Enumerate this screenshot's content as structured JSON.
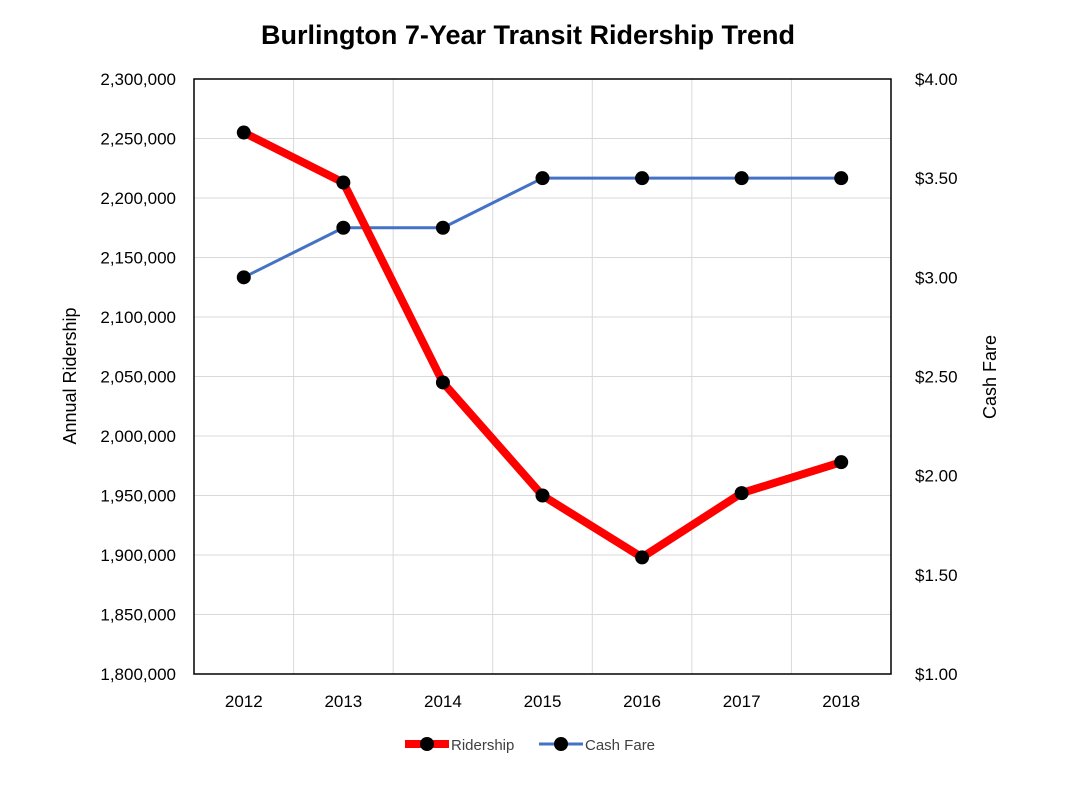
{
  "chart_data": {
    "type": "line",
    "title": "Burlington 7-Year Transit Ridership Trend",
    "categories": [
      "2012",
      "2013",
      "2014",
      "2015",
      "2016",
      "2017",
      "2018"
    ],
    "series": [
      {
        "name": "Ridership",
        "axis": "left",
        "color": "#ff0000",
        "values": [
          2255000,
          2213000,
          2045000,
          1950000,
          1898000,
          1952000,
          1978000
        ]
      },
      {
        "name": "Cash Fare",
        "axis": "right",
        "color": "#4472c4",
        "values": [
          3.0,
          3.25,
          3.25,
          3.5,
          3.5,
          3.5,
          3.5
        ]
      }
    ],
    "left_axis": {
      "label": "Annual Ridership",
      "min": 1800000,
      "max": 2300000,
      "step": 50000,
      "tick_labels": [
        "1,800,000",
        "1,850,000",
        "1,900,000",
        "1,950,000",
        "2,000,000",
        "2,050,000",
        "2,100,000",
        "2,150,000",
        "2,200,000",
        "2,250,000",
        "2,300,000"
      ]
    },
    "right_axis": {
      "label": "Cash Fare",
      "min": 1.0,
      "max": 4.0,
      "step": 0.5,
      "tick_labels": [
        "$1.00",
        "$1.50",
        "$2.00",
        "$2.50",
        "$3.00",
        "$3.50",
        "$4.00"
      ]
    },
    "marker_color": "#000000",
    "grid": true,
    "legend_position": "bottom"
  }
}
